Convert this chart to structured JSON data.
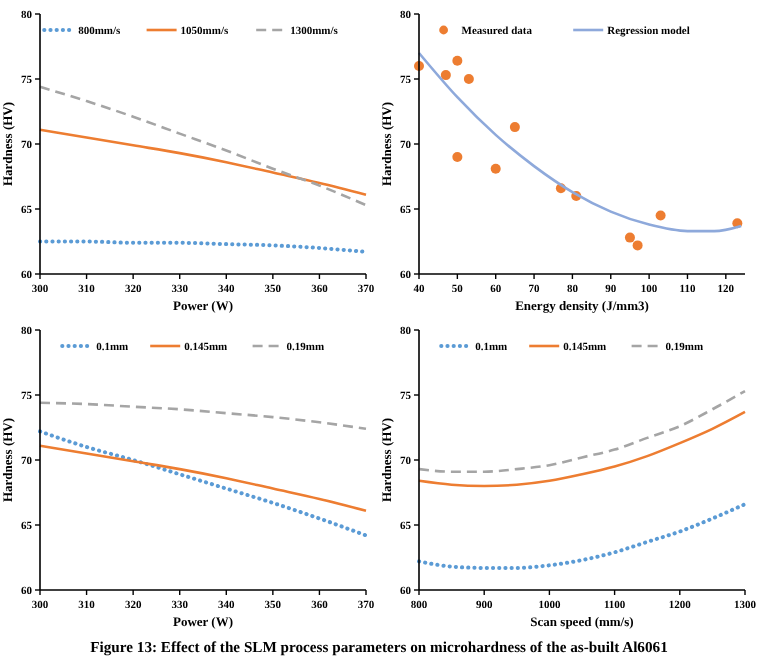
{
  "chart_data": [
    {
      "type": "line",
      "xlabel": "Power (W)",
      "ylabel": "Hardness (HV)",
      "x": [
        300,
        310,
        320,
        330,
        340,
        350,
        360,
        370
      ],
      "xlim": [
        300,
        370
      ],
      "xticks": [
        300,
        310,
        320,
        330,
        340,
        350,
        360,
        370
      ],
      "ylim": [
        60,
        80
      ],
      "yticks": [
        60,
        65,
        70,
        75,
        80
      ],
      "legend": "top",
      "grid": false,
      "marker": "none",
      "series": [
        {
          "name": "800mm/s",
          "color": "#5b9bd5",
          "line_style": "dotted",
          "values": [
            62.5,
            62.5,
            62.4,
            62.4,
            62.3,
            62.2,
            62.0,
            61.7
          ]
        },
        {
          "name": "1050mm/s",
          "color": "#ed7d31",
          "line_style": "solid",
          "values": [
            71.1,
            70.5,
            69.9,
            69.3,
            68.6,
            67.8,
            67.0,
            66.1
          ]
        },
        {
          "name": "1300mm/s",
          "color": "#a5a5a5",
          "line_style": "dashed",
          "values": [
            74.4,
            73.3,
            72.1,
            70.8,
            69.5,
            68.1,
            66.8,
            65.3
          ]
        }
      ]
    },
    {
      "type": "scatter",
      "xlabel": "Energy density (J/mm3)",
      "ylabel": "Hardness (HV)",
      "xlim": [
        40,
        125
      ],
      "xticks": [
        40,
        50,
        60,
        70,
        80,
        90,
        100,
        110,
        120
      ],
      "ylim": [
        60,
        80
      ],
      "yticks": [
        60,
        65,
        70,
        75,
        80
      ],
      "legend": "top",
      "grid": false,
      "series": [
        {
          "name": "Measured data",
          "marker": "circle",
          "color": "#ed7d31",
          "x": [
            40,
            47,
            50,
            53,
            50,
            60,
            65,
            77,
            81,
            95,
            97,
            103,
            123
          ],
          "values": [
            76,
            75.3,
            76.4,
            75,
            69,
            68.1,
            71.3,
            66.6,
            66,
            62.8,
            62.2,
            64.5,
            63.9
          ]
        },
        {
          "name": "Regression model",
          "type": "line",
          "marker": "none",
          "color": "#8ea9db",
          "line_style": "solid",
          "x": [
            40,
            50,
            60,
            70,
            80,
            90,
            100,
            110,
            117,
            124
          ],
          "values": [
            77,
            73.6,
            70.7,
            68.3,
            66.3,
            64.8,
            63.8,
            63.3,
            63.3,
            63.7
          ]
        }
      ]
    },
    {
      "type": "line",
      "xlabel": "Power (W)",
      "ylabel": "Hardness (HV)",
      "x": [
        300,
        310,
        320,
        330,
        340,
        350,
        360,
        370
      ],
      "xlim": [
        300,
        370
      ],
      "xticks": [
        300,
        310,
        320,
        330,
        340,
        350,
        360,
        370
      ],
      "ylim": [
        60,
        80
      ],
      "yticks": [
        60,
        65,
        70,
        75,
        80
      ],
      "legend": "top",
      "grid": false,
      "marker": "none",
      "series": [
        {
          "name": "0.1mm",
          "color": "#5b9bd5",
          "line_style": "dotted",
          "values": [
            72.2,
            71.0,
            70.0,
            68.9,
            67.8,
            66.7,
            65.5,
            64.2
          ]
        },
        {
          "name": "0.145mm",
          "color": "#ed7d31",
          "line_style": "solid",
          "values": [
            71.1,
            70.5,
            69.9,
            69.3,
            68.6,
            67.8,
            67.0,
            66.1
          ]
        },
        {
          "name": "0.19mm",
          "color": "#a5a5a5",
          "line_style": "dashed",
          "values": [
            74.4,
            74.3,
            74.1,
            73.9,
            73.6,
            73.3,
            72.9,
            72.4
          ]
        }
      ]
    },
    {
      "type": "line",
      "xlabel": "Scan speed (mm/s)",
      "ylabel": "Hardness (HV)",
      "x": [
        800,
        850,
        900,
        950,
        1000,
        1050,
        1100,
        1150,
        1200,
        1250,
        1300
      ],
      "xlim": [
        800,
        1300
      ],
      "xticks": [
        800,
        900,
        1000,
        1100,
        1200,
        1300
      ],
      "ylim": [
        60,
        80
      ],
      "yticks": [
        60,
        65,
        70,
        75,
        80
      ],
      "legend": "top",
      "grid": false,
      "marker": "none",
      "series": [
        {
          "name": "0.1mm",
          "color": "#5b9bd5",
          "line_style": "dotted",
          "values": [
            62.2,
            61.8,
            61.7,
            61.7,
            61.9,
            62.3,
            62.9,
            63.7,
            64.5,
            65.5,
            66.6
          ]
        },
        {
          "name": "0.145mm",
          "color": "#ed7d31",
          "line_style": "solid",
          "values": [
            68.4,
            68.1,
            68.0,
            68.1,
            68.4,
            68.9,
            69.5,
            70.3,
            71.3,
            72.4,
            73.7
          ]
        },
        {
          "name": "0.19mm",
          "color": "#a5a5a5",
          "line_style": "dashed",
          "values": [
            69.3,
            69.1,
            69.1,
            69.3,
            69.6,
            70.2,
            70.8,
            71.7,
            72.6,
            73.9,
            75.3
          ]
        }
      ]
    },
    {
      "type": "other",
      "title": "Figure 13: Effect of the SLM process parameters on microhardness of the as-built Al6061"
    }
  ]
}
